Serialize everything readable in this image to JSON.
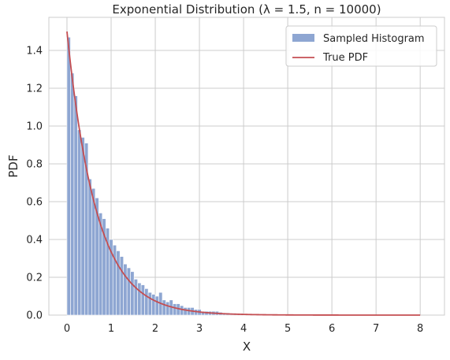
{
  "chart_data": {
    "type": "bar",
    "title": "Exponential Distribution (λ = 1.5, n = 10000)",
    "xlabel": "X",
    "ylabel": "PDF",
    "xlim": [
      -0.41,
      8.55
    ],
    "ylim": [
      0,
      1.575
    ],
    "xticks": [
      "0",
      "1",
      "2",
      "3",
      "4",
      "5",
      "6",
      "7",
      "8"
    ],
    "yticks": [
      "0.0",
      "0.2",
      "0.4",
      "0.6",
      "0.8",
      "1.0",
      "1.2",
      "1.4"
    ],
    "grid": true,
    "legend_position": "top-right",
    "histogram": {
      "name": "Sampled Histogram",
      "color": "#8ea6d2",
      "bin_width": 0.08,
      "bin_start": 0.0,
      "heights": [
        1.47,
        1.28,
        1.16,
        0.98,
        0.94,
        0.91,
        0.72,
        0.67,
        0.62,
        0.54,
        0.51,
        0.46,
        0.4,
        0.37,
        0.34,
        0.31,
        0.27,
        0.25,
        0.23,
        0.19,
        0.17,
        0.16,
        0.14,
        0.12,
        0.11,
        0.1,
        0.12,
        0.08,
        0.07,
        0.08,
        0.06,
        0.06,
        0.05,
        0.04,
        0.04,
        0.04,
        0.03,
        0.03,
        0.02,
        0.02,
        0.02,
        0.02,
        0.02,
        0.015,
        0.012,
        0.012,
        0.01,
        0.01,
        0.008,
        0.008,
        0.007,
        0.006,
        0.006,
        0.005,
        0.004,
        0.004,
        0.004,
        0.003,
        0.003,
        0.003,
        0.002,
        0.002,
        0.002,
        0.002,
        0.0015,
        0.0015,
        0.001,
        0.001,
        0.001,
        0.001,
        0.001,
        0.0008,
        0.0008,
        0.0006,
        0.0006,
        0.0005,
        0.0005,
        0.0004,
        0.0004,
        0.0004,
        0.0003,
        0.0003,
        0.0003,
        0.0002,
        0.0002,
        0.0002,
        0.0002,
        0.0001,
        0.0001,
        0.0001,
        0.0001,
        0.0001,
        0.0001,
        0.0001,
        0.0001,
        0.0001,
        0.0001,
        0.0001,
        0.0001,
        0.0001
      ]
    },
    "pdf_line": {
      "name": "True PDF",
      "color": "#c44e52",
      "rate": 1.5,
      "x_range": [
        0,
        8.0
      ]
    },
    "colors": {
      "grid": "#cccccc",
      "axes_edge": "#cccccc",
      "text": "#262626"
    }
  }
}
